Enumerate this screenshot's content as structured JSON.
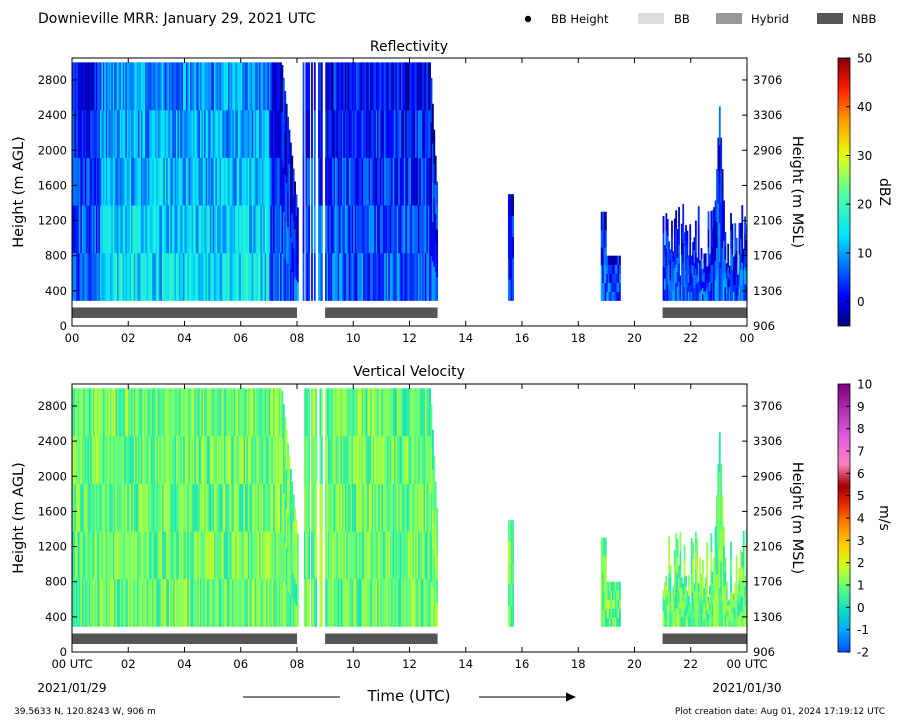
{
  "header": {
    "title": "Downieville MRR:  January 29, 2021 UTC",
    "legend": [
      {
        "label": "BB Height",
        "symbol": "dot",
        "color": "#000000"
      },
      {
        "label": "BB",
        "symbol": "box",
        "color": "#dcdcdc"
      },
      {
        "label": "Hybrid",
        "symbol": "box",
        "color": "#999999"
      },
      {
        "label": "NBB",
        "symbol": "box",
        "color": "#555555"
      }
    ]
  },
  "footer": {
    "location": "39.5633 N, 120.8243 W, 906 m",
    "creation": "Plot creation date: Aug 01, 2024 17:19:12 UTC",
    "xlabel": "Time (UTC)",
    "date_start": "2021/01/29",
    "date_end": "2021/01/30"
  },
  "chart_data": [
    {
      "type": "heatmap",
      "title": "Reflectivity",
      "ylabel": "Height (m AGL)",
      "y2label": "Height (m MSL)",
      "xlim": [
        0,
        24
      ],
      "ylim": [
        0,
        3050
      ],
      "x_ticks": [
        "00",
        "02",
        "04",
        "06",
        "08",
        "10",
        "12",
        "14",
        "16",
        "18",
        "20",
        "22",
        "00"
      ],
      "y_ticks": [
        0,
        400,
        800,
        1200,
        1600,
        2000,
        2400,
        2800
      ],
      "y2_ticks": [
        906,
        1306,
        1706,
        2106,
        2506,
        2906,
        3306,
        3706
      ],
      "colorbar": {
        "label": "dBZ",
        "min": -5,
        "max": 50,
        "ticks": [
          0,
          10,
          20,
          30,
          40,
          50
        ],
        "palette": "jet"
      },
      "nbb_bar": [
        [
          0,
          8.0
        ],
        [
          9.0,
          13.0
        ],
        [
          21.0,
          24.0
        ]
      ],
      "echo_regions": [
        {
          "x": [
            0.0,
            8.0
          ],
          "ytop": 3000,
          "tail": 0.6
        },
        {
          "x": [
            8.2,
            8.9
          ],
          "ytop": 3000,
          "sparse": true
        },
        {
          "x": [
            9.0,
            13.0
          ],
          "ytop": 3000,
          "tail": 2.0
        },
        {
          "x": [
            15.5,
            15.7
          ],
          "ytop": 1500
        },
        {
          "x": [
            18.8,
            19.0
          ],
          "ytop": 1300
        },
        {
          "x": [
            19.0,
            19.5
          ],
          "ytop": 800
        },
        {
          "x": [
            21.0,
            24.0
          ],
          "ytop": 1400,
          "peak": [
            23.0,
            2500
          ]
        }
      ]
    },
    {
      "type": "heatmap",
      "title": "Vertical Velocity",
      "ylabel": "Height (m AGL)",
      "y2label": "Height (m MSL)",
      "xlim": [
        0,
        24
      ],
      "ylim": [
        0,
        3050
      ],
      "x_ticks": [
        "00 UTC",
        "02",
        "04",
        "06",
        "08",
        "10",
        "12",
        "14",
        "16",
        "18",
        "20",
        "22",
        "00 UTC"
      ],
      "y_ticks": [
        0,
        400,
        800,
        1200,
        1600,
        2000,
        2400,
        2800
      ],
      "y2_ticks": [
        906,
        1306,
        1706,
        2106,
        2506,
        2906,
        3306,
        3706
      ],
      "colorbar": {
        "label": "m/s",
        "min": -2,
        "max": 10,
        "ticks": [
          -2,
          -1,
          0,
          1,
          2,
          3,
          4,
          5,
          6,
          7,
          8,
          9,
          10
        ],
        "palette": "velocity"
      },
      "nbb_bar": [
        [
          0,
          8.0
        ],
        [
          9.0,
          13.0
        ],
        [
          21.0,
          24.0
        ]
      ],
      "echo_regions": [
        {
          "x": [
            0.0,
            8.0
          ],
          "ytop": 3000,
          "tail": 0.6
        },
        {
          "x": [
            8.2,
            8.9
          ],
          "ytop": 3000,
          "sparse": true
        },
        {
          "x": [
            9.0,
            13.0
          ],
          "ytop": 3000,
          "tail": 2.0
        },
        {
          "x": [
            15.5,
            15.7
          ],
          "ytop": 1500
        },
        {
          "x": [
            18.8,
            19.0
          ],
          "ytop": 1300
        },
        {
          "x": [
            19.0,
            19.5
          ],
          "ytop": 800
        },
        {
          "x": [
            21.0,
            24.0
          ],
          "ytop": 1400,
          "peak": [
            23.0,
            2500
          ]
        }
      ]
    }
  ]
}
